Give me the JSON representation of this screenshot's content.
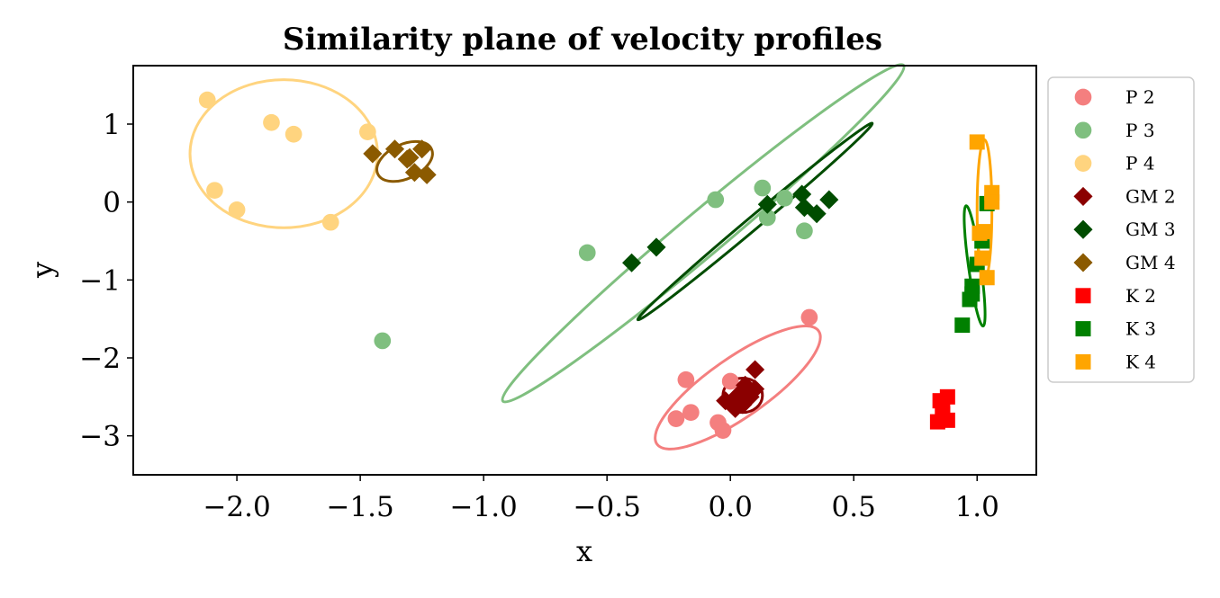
{
  "chart_data": {
    "type": "scatter",
    "title": "Similarity plane of velocity profiles",
    "xlabel": "x",
    "ylabel": "y",
    "xlim": [
      -2.42,
      1.24
    ],
    "ylim": [
      -3.5,
      1.75
    ],
    "xticks": [
      -2.0,
      -1.5,
      -1.0,
      -0.5,
      0.0,
      0.5,
      1.0
    ],
    "xtick_labels": [
      "−2.0",
      "−1.5",
      "−1.0",
      "−0.5",
      "0.0",
      "0.5",
      "1.0"
    ],
    "yticks": [
      1,
      0,
      -1,
      -2,
      -3
    ],
    "ytick_labels": [
      "1",
      "0",
      "−1",
      "−2",
      "−3"
    ],
    "grid": false,
    "legend_position": "outside-right",
    "series": [
      {
        "name": "P 2",
        "marker": "circle",
        "color": "#f47f7f",
        "points": [
          [
            0.32,
            -1.48
          ],
          [
            -0.18,
            -2.28
          ],
          [
            0.0,
            -2.3
          ],
          [
            -0.22,
            -2.78
          ],
          [
            -0.16,
            -2.7
          ],
          [
            -0.05,
            -2.83
          ],
          [
            -0.03,
            -2.93
          ]
        ]
      },
      {
        "name": "P 3",
        "marker": "circle",
        "color": "#7fbf7f",
        "points": [
          [
            -1.41,
            -1.78
          ],
          [
            -0.58,
            -0.65
          ],
          [
            -0.06,
            0.03
          ],
          [
            0.13,
            0.18
          ],
          [
            0.15,
            -0.2
          ],
          [
            0.22,
            0.05
          ],
          [
            0.3,
            -0.37
          ]
        ]
      },
      {
        "name": "P 4",
        "marker": "circle",
        "color": "#ffd47f",
        "points": [
          [
            -2.12,
            1.31
          ],
          [
            -1.86,
            1.02
          ],
          [
            -1.77,
            0.87
          ],
          [
            -1.47,
            0.9
          ],
          [
            -2.09,
            0.15
          ],
          [
            -2.0,
            -0.1
          ],
          [
            -1.62,
            -0.26
          ]
        ]
      },
      {
        "name": "GM 2",
        "marker": "diamond",
        "color": "#8b0000",
        "points": [
          [
            -0.02,
            -2.55
          ],
          [
            0.03,
            -2.48
          ],
          [
            0.05,
            -2.6
          ],
          [
            0.08,
            -2.5
          ],
          [
            0.1,
            -2.4
          ],
          [
            0.1,
            -2.15
          ],
          [
            0.06,
            -2.35
          ],
          [
            0.02,
            -2.65
          ]
        ]
      },
      {
        "name": "GM 3",
        "marker": "diamond",
        "color": "#004c00",
        "points": [
          [
            -0.4,
            -0.78
          ],
          [
            -0.3,
            -0.58
          ],
          [
            0.15,
            -0.03
          ],
          [
            0.29,
            0.1
          ],
          [
            0.3,
            -0.07
          ],
          [
            0.35,
            -0.15
          ],
          [
            0.4,
            0.03
          ]
        ]
      },
      {
        "name": "GM 4",
        "marker": "diamond",
        "color": "#8b5a00",
        "points": [
          [
            -1.45,
            0.62
          ],
          [
            -1.36,
            0.68
          ],
          [
            -1.3,
            0.57
          ],
          [
            -1.25,
            0.68
          ],
          [
            -1.28,
            0.38
          ],
          [
            -1.23,
            0.35
          ],
          [
            -1.31,
            0.55
          ]
        ]
      },
      {
        "name": "K 2",
        "marker": "square",
        "color": "#ff0000",
        "points": [
          [
            0.85,
            -2.55
          ],
          [
            0.88,
            -2.5
          ],
          [
            0.86,
            -2.65
          ],
          [
            0.84,
            -2.82
          ],
          [
            0.88,
            -2.8
          ],
          [
            0.86,
            -2.72
          ]
        ]
      },
      {
        "name": "K 3",
        "marker": "square",
        "color": "#008000",
        "points": [
          [
            0.94,
            -1.58
          ],
          [
            0.98,
            -1.18
          ],
          [
            0.98,
            -1.08
          ],
          [
            1.0,
            -0.8
          ],
          [
            1.02,
            -0.5
          ],
          [
            1.04,
            -0.02
          ],
          [
            0.97,
            -1.25
          ]
        ]
      },
      {
        "name": "K 4",
        "marker": "square",
        "color": "#ffa500",
        "points": [
          [
            1.0,
            0.77
          ],
          [
            1.06,
            0.12
          ],
          [
            1.06,
            0.0
          ],
          [
            1.01,
            -0.4
          ],
          [
            1.03,
            -0.38
          ],
          [
            1.04,
            -0.97
          ],
          [
            1.02,
            -0.72
          ]
        ]
      }
    ],
    "ellipses": [
      {
        "name": "P 2 ellipse",
        "color": "#f47f7f",
        "cx": 0.03,
        "cy": -2.38,
        "rx": 0.4,
        "ry": 0.38,
        "angle_deg": 35
      },
      {
        "name": "P 3 ellipse",
        "color": "#7fbf7f",
        "cx": -0.11,
        "cy": -0.4,
        "rx": 1.06,
        "ry": 0.28,
        "angle_deg": 40
      },
      {
        "name": "P 4 ellipse",
        "color": "#ffd47f",
        "cx": -1.81,
        "cy": 0.62,
        "rx": 0.38,
        "ry": 0.95,
        "angle_deg": 0
      },
      {
        "name": "GM 2 ellipse",
        "color": "#8b0000",
        "cx": 0.05,
        "cy": -2.48,
        "rx": 0.08,
        "ry": 0.22,
        "angle_deg": 0
      },
      {
        "name": "GM 3 ellipse",
        "color": "#004c00",
        "cx": 0.1,
        "cy": -0.25,
        "rx": 0.62,
        "ry": 0.08,
        "angle_deg": 40
      },
      {
        "name": "GM 4 ellipse",
        "color": "#8b5a00",
        "cx": -1.32,
        "cy": 0.52,
        "rx": 0.12,
        "ry": 0.22,
        "angle_deg": 25
      },
      {
        "name": "K 3 ellipse",
        "color": "#008000",
        "cx": 0.99,
        "cy": -0.82,
        "rx": 0.025,
        "ry": 0.78,
        "angle_deg": 8
      },
      {
        "name": "K 4 ellipse",
        "color": "#ffa500",
        "cx": 1.03,
        "cy": -0.1,
        "rx": 0.03,
        "ry": 0.9,
        "angle_deg": 0
      }
    ]
  }
}
